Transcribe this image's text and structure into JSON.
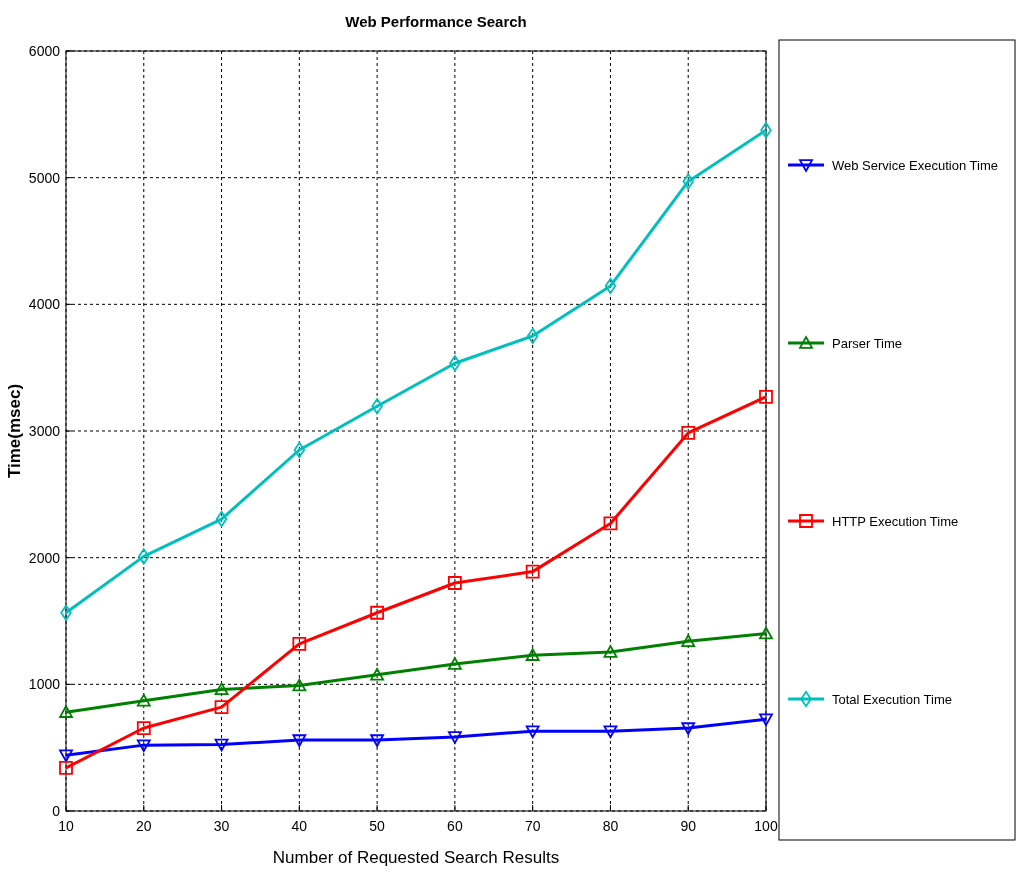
{
  "chart_data": {
    "type": "line",
    "title": "Web Performance Search",
    "xlabel": "Number of Requested Search Results",
    "ylabel": "Time(msec)",
    "x": [
      10,
      20,
      30,
      40,
      50,
      60,
      70,
      80,
      90,
      100
    ],
    "series": [
      {
        "name": "Web Service Execution Time",
        "color": "#0000ff",
        "marker": "triangle-down",
        "values": [
          440,
          520,
          525,
          560,
          560,
          585,
          630,
          630,
          655,
          725
        ]
      },
      {
        "name": "Parser Time",
        "color": "#008000",
        "marker": "triangle",
        "values": [
          780,
          870,
          960,
          990,
          1075,
          1160,
          1230,
          1255,
          1340,
          1400
        ]
      },
      {
        "name": "HTTP Execution Time",
        "color": "#ff0000",
        "marker": "square",
        "values": [
          340,
          655,
          820,
          1320,
          1565,
          1800,
          1890,
          2270,
          2985,
          3270
        ]
      },
      {
        "name": "Total Execution Time",
        "color": "#00bfbf",
        "marker": "diamond",
        "values": [
          1565,
          2010,
          2305,
          2850,
          3195,
          3535,
          3750,
          4145,
          4970,
          5375
        ]
      }
    ],
    "xlim": [
      10,
      100
    ],
    "xticks": [
      10,
      20,
      30,
      40,
      50,
      60,
      70,
      80,
      90,
      100
    ],
    "ylim": [
      0,
      6000
    ],
    "yticks": [
      0,
      1000,
      2000,
      3000,
      4000,
      5000,
      6000
    ],
    "grid": true,
    "legend": "right",
    "line_style": "solid"
  }
}
